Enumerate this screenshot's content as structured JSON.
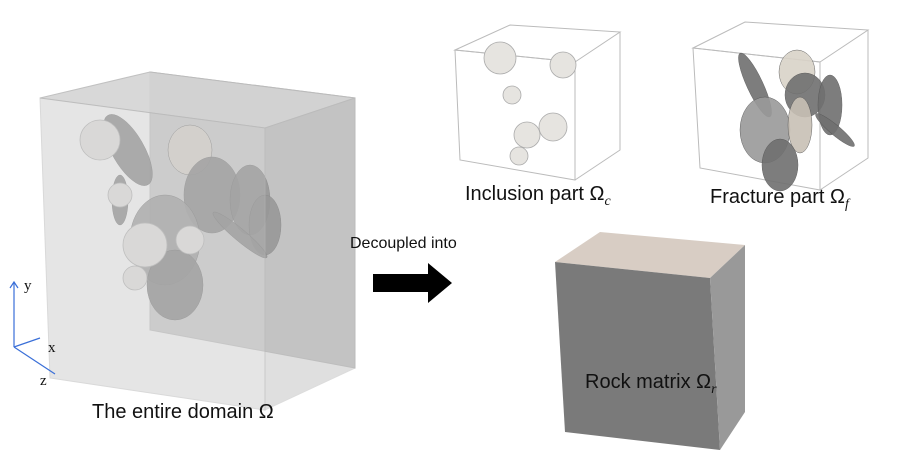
{
  "domain_label": {
    "text": "The entire domain Ω"
  },
  "arrow_label": "Decoupled into",
  "inclusion_label": {
    "text": "Inclusion part Ω",
    "sub": "c"
  },
  "fracture_label": {
    "text": "Fracture part Ω",
    "sub": "f"
  },
  "matrix_label": {
    "text": "Rock matrix Ω",
    "sub": "r"
  },
  "axes": {
    "y": "y",
    "x": "x",
    "z": "z"
  }
}
